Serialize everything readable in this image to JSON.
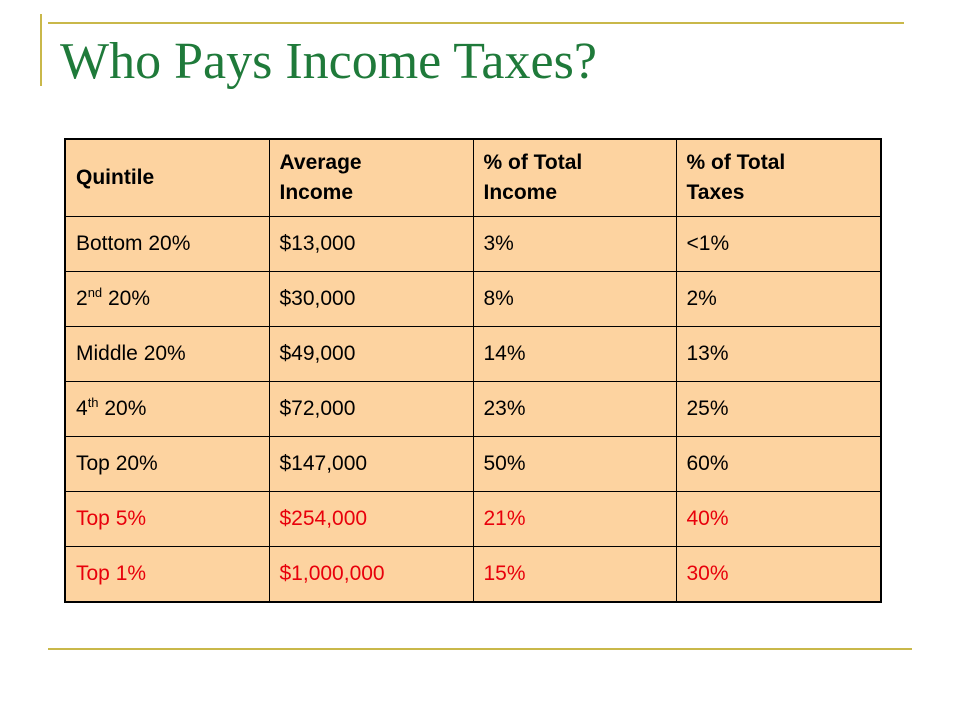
{
  "title": "Who Pays Income Taxes?",
  "table": {
    "headers": [
      [
        "Quintile"
      ],
      [
        "Average",
        "Income"
      ],
      [
        "% of Total",
        "Income"
      ],
      [
        "% of Total",
        "Taxes"
      ]
    ],
    "rows": [
      {
        "quintile": {
          "pre": "Bottom 20%",
          "sup": "",
          "post": ""
        },
        "avg_income": "$13,000",
        "pct_income": "3%",
        "pct_taxes": "<1%",
        "highlight": false
      },
      {
        "quintile": {
          "pre": "2",
          "sup": "nd",
          "post": " 20%"
        },
        "avg_income": "$30,000",
        "pct_income": "8%",
        "pct_taxes": "2%",
        "highlight": false
      },
      {
        "quintile": {
          "pre": "Middle 20%",
          "sup": "",
          "post": ""
        },
        "avg_income": "$49,000",
        "pct_income": "14%",
        "pct_taxes": "13%",
        "highlight": false
      },
      {
        "quintile": {
          "pre": "4",
          "sup": "th",
          "post": " 20%"
        },
        "avg_income": "$72,000",
        "pct_income": "23%",
        "pct_taxes": "25%",
        "highlight": false
      },
      {
        "quintile": {
          "pre": "Top 20%",
          "sup": "",
          "post": ""
        },
        "avg_income": "$147,000",
        "pct_income": "50%",
        "pct_taxes": "60%",
        "highlight": false
      },
      {
        "quintile": {
          "pre": "Top 5%",
          "sup": "",
          "post": ""
        },
        "avg_income": "$254,000",
        "pct_income": "21%",
        "pct_taxes": "40%",
        "highlight": true
      },
      {
        "quintile": {
          "pre": "Top 1%",
          "sup": "",
          "post": ""
        },
        "avg_income": "$1,000,000",
        "pct_income": "15%",
        "pct_taxes": "30%",
        "highlight": true
      }
    ]
  },
  "colors": {
    "title": "#1f7a3a",
    "cell_fill": "#fdd3a0",
    "highlight_text": "#e8000b",
    "rule": "#c9b84a"
  }
}
